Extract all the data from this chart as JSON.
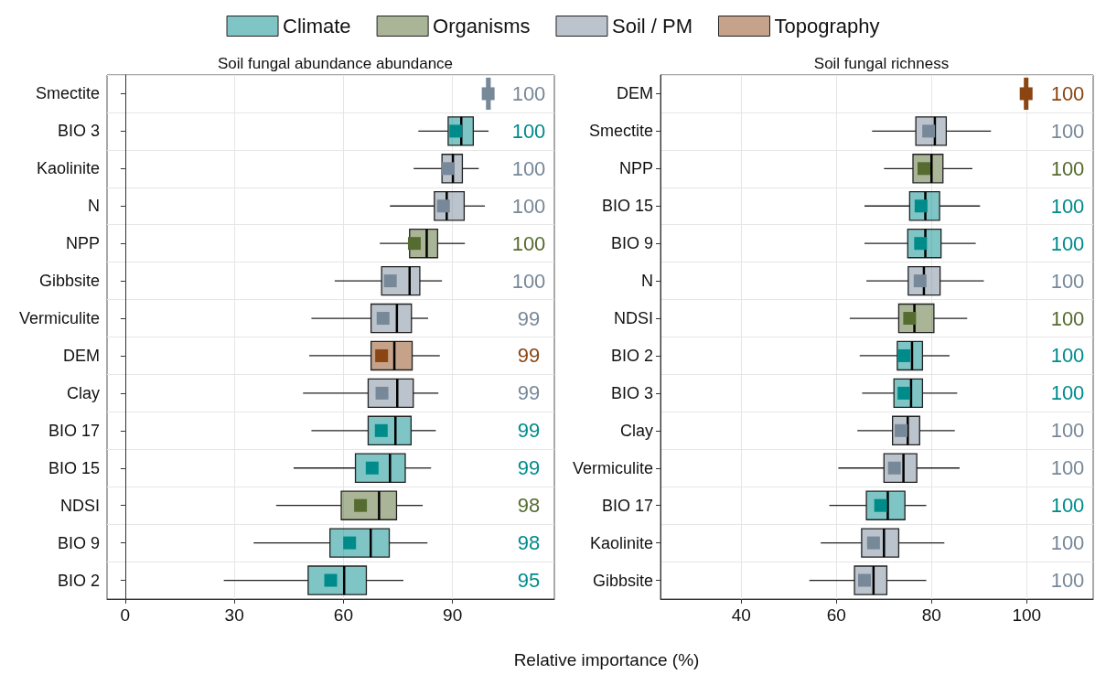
{
  "chart_data": [
    {
      "type": "box",
      "orientation": "horizontal",
      "title": "Soil fungal abundance abundance",
      "xlabel": "Relative importance (%)",
      "legend": "top",
      "grid": true,
      "marker": "square",
      "categories": [
        "Smectite",
        "BIO 3",
        "Kaolinite",
        "N",
        "NPP",
        "Gibbsite",
        "Vermiculite",
        "DEM",
        "Clay",
        "BIO 17",
        "BIO 15",
        "NDSI",
        "BIO 9",
        "BIO 2"
      ],
      "xlim": [
        -5,
        118
      ],
      "xticks": [
        0,
        30,
        60,
        90
      ],
      "series": [
        {
          "name": "Climate",
          "color": "#008b8b",
          "boxes": [
            null,
            {
              "low": 80.6,
              "q1": 88.8,
              "median": 92.4,
              "q3": 95.7,
              "high": 99.9,
              "mean": 90.9
            },
            null,
            null,
            null,
            null,
            null,
            null,
            null,
            {
              "low": 51.2,
              "q1": 66.8,
              "median": 74.3,
              "q3": 78.6,
              "high": 85.4,
              "mean": 70.4
            },
            {
              "low": 46.3,
              "q1": 63.3,
              "median": 72.8,
              "q3": 77.0,
              "high": 84.1,
              "mean": 67.9
            },
            null,
            {
              "low": 35.3,
              "q1": 56.3,
              "median": 67.5,
              "q3": 72.6,
              "high": 83.1,
              "mean": 61.7
            },
            {
              "low": 27.1,
              "q1": 50.3,
              "median": 60.2,
              "q3": 66.3,
              "high": 76.5,
              "mean": 56.5
            }
          ],
          "value_labels": [
            null,
            "100",
            null,
            null,
            null,
            null,
            null,
            null,
            null,
            "99",
            "99",
            null,
            "98",
            "95"
          ]
        },
        {
          "name": "Organisms",
          "color": "#556b2f",
          "boxes": [
            null,
            null,
            null,
            null,
            {
              "low": 70.0,
              "q1": 78.2,
              "median": 82.9,
              "q3": 85.9,
              "high": 93.4,
              "mean": 79.5
            },
            null,
            null,
            null,
            null,
            null,
            null,
            {
              "low": 41.5,
              "q1": 59.4,
              "median": 69.8,
              "q3": 74.6,
              "high": 81.8,
              "mean": 64.7
            },
            null,
            null
          ],
          "value_labels": [
            null,
            null,
            null,
            null,
            "100",
            null,
            null,
            null,
            null,
            null,
            null,
            "98",
            null,
            null
          ]
        },
        {
          "name": "Soil / PM",
          "color": "#778899",
          "boxes": [
            {
              "low": 99.5,
              "q1": 99.7,
              "median": 99.9,
              "q3": 100,
              "high": 100,
              "mean": 99.8
            },
            null,
            {
              "low": 79.3,
              "q1": 87.1,
              "median": 90.1,
              "q3": 92.7,
              "high": 97.2,
              "mean": 88.7
            },
            {
              "low": 72.8,
              "q1": 85.0,
              "median": 88.4,
              "q3": 93.2,
              "high": 98.9,
              "mean": 87.5
            },
            null,
            {
              "low": 57.6,
              "q1": 70.5,
              "median": 78.2,
              "q3": 81.0,
              "high": 87.1,
              "mean": 72.9
            },
            {
              "low": 51.2,
              "q1": 67.6,
              "median": 74.7,
              "q3": 78.7,
              "high": 83.3,
              "mean": 70.9
            },
            null,
            {
              "low": 48.9,
              "q1": 66.8,
              "median": 74.8,
              "q3": 79.2,
              "high": 86.1,
              "mean": 70.6
            },
            null,
            null,
            null,
            null,
            null
          ],
          "value_labels": [
            "100",
            null,
            "100",
            "100",
            null,
            "100",
            "99",
            null,
            "99",
            null,
            null,
            null,
            null,
            null
          ]
        },
        {
          "name": "Topography",
          "color": "#8b4513",
          "boxes": [
            null,
            null,
            null,
            null,
            null,
            null,
            null,
            {
              "low": 50.6,
              "q1": 67.6,
              "median": 74.0,
              "q3": 78.9,
              "high": 86.5,
              "mean": 70.5
            },
            null,
            null,
            null,
            null,
            null,
            null
          ],
          "value_labels": [
            null,
            null,
            null,
            null,
            null,
            null,
            null,
            "99",
            null,
            null,
            null,
            null,
            null,
            null
          ]
        }
      ]
    },
    {
      "type": "box",
      "orientation": "horizontal",
      "title": "Soil fungal richness",
      "grid": true,
      "marker": "square",
      "categories": [
        "DEM",
        "Smectite",
        "NPP",
        "BIO 15",
        "BIO 9",
        "N",
        "NDSI",
        "BIO 2",
        "BIO 3",
        "Clay",
        "Vermiculite",
        "BIO 17",
        "Kaolinite",
        "Gibbsite"
      ],
      "xlim": [
        23,
        114
      ],
      "xticks": [
        40,
        60,
        80,
        100
      ],
      "series": [
        {
          "color": "#008b8b",
          "boxes": [
            null,
            null,
            null,
            {
              "low": 65.9,
              "q1": 75.4,
              "median": 78.7,
              "q3": 81.7,
              "high": 90.2,
              "mean": 77.8
            },
            {
              "low": 65.9,
              "q1": 75.0,
              "median": 78.7,
              "q3": 82.0,
              "high": 89.3,
              "mean": 77.7
            },
            null,
            null,
            {
              "low": 64.9,
              "q1": 72.8,
              "median": 75.9,
              "q3": 78.1,
              "high": 83.8,
              "mean": 74.2
            },
            {
              "low": 65.4,
              "q1": 72.1,
              "median": 75.7,
              "q3": 78.1,
              "high": 85.4,
              "mean": 74.2
            },
            null,
            null,
            {
              "low": 58.5,
              "q1": 66.3,
              "median": 70.8,
              "q3": 74.4,
              "high": 78.9,
              "mean": 69.3
            },
            null,
            null
          ],
          "value_labels": [
            null,
            null,
            null,
            "100",
            "100",
            null,
            null,
            "100",
            "100",
            null,
            null,
            "100",
            null,
            null
          ]
        },
        {
          "color": "#556b2f",
          "boxes": [
            null,
            null,
            {
              "low": 70.0,
              "q1": 76.1,
              "median": 80.0,
              "q3": 82.4,
              "high": 88.6,
              "mean": 78.4
            },
            null,
            null,
            null,
            {
              "low": 62.8,
              "q1": 73.1,
              "median": 76.4,
              "q3": 80.5,
              "high": 87.5,
              "mean": 75.4
            },
            null,
            null,
            null,
            null,
            null,
            null,
            null
          ],
          "value_labels": [
            null,
            null,
            "100",
            null,
            null,
            null,
            "100",
            null,
            null,
            null,
            null,
            null,
            null,
            null
          ]
        },
        {
          "color": "#778899",
          "boxes": [
            null,
            {
              "low": 67.5,
              "q1": 76.7,
              "median": 80.7,
              "q3": 83.1,
              "high": 92.5,
              "mean": 79.4
            },
            null,
            null,
            null,
            {
              "low": 66.3,
              "q1": 75.1,
              "median": 78.4,
              "q3": 81.8,
              "high": 91.0,
              "mean": 77.6
            },
            null,
            null,
            null,
            {
              "low": 64.4,
              "q1": 71.8,
              "median": 75.0,
              "q3": 77.5,
              "high": 84.9,
              "mean": 73.6
            },
            {
              "low": 60.4,
              "q1": 70.0,
              "median": 74.1,
              "q3": 76.9,
              "high": 85.9,
              "mean": 72.2
            },
            null,
            {
              "low": 56.7,
              "q1": 65.3,
              "median": 70.0,
              "q3": 73.1,
              "high": 82.7,
              "mean": 67.8
            },
            {
              "low": 54.3,
              "q1": 63.8,
              "median": 67.8,
              "q3": 70.6,
              "high": 78.9,
              "mean": 65.9
            }
          ],
          "value_labels": [
            null,
            "100",
            null,
            null,
            null,
            "100",
            null,
            null,
            null,
            "100",
            "100",
            null,
            "100",
            "100"
          ]
        },
        {
          "color": "#8b4513",
          "boxes": [
            {
              "low": 99.6,
              "q1": 99.8,
              "median": 99.9,
              "q3": 100,
              "high": 100,
              "mean": 99.9
            },
            null,
            null,
            null,
            null,
            null,
            null,
            null,
            null,
            null,
            null,
            null,
            null,
            null
          ],
          "value_labels": [
            "100",
            null,
            null,
            null,
            null,
            null,
            null,
            null,
            null,
            null,
            null,
            null,
            null,
            null
          ]
        }
      ]
    }
  ]
}
